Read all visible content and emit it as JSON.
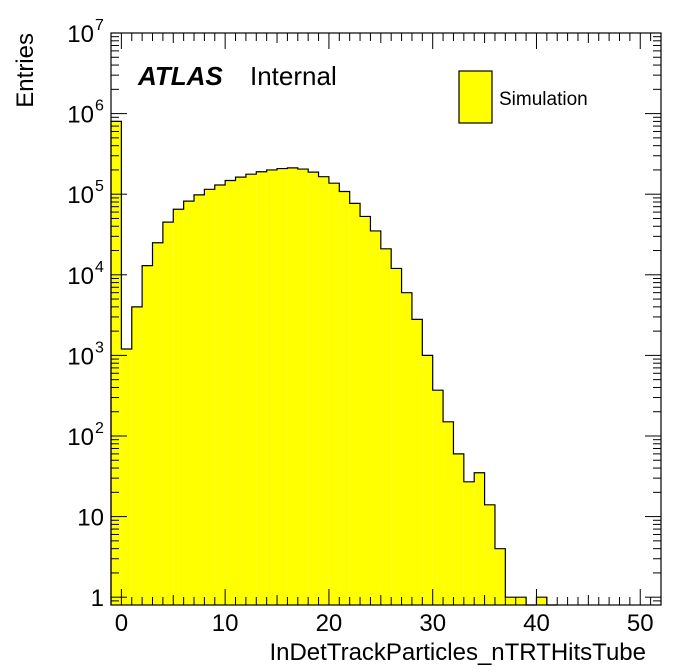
{
  "chart_data": {
    "type": "bar",
    "title": "",
    "xlabel": "InDetTrackParticles_nTRTHitsTube",
    "ylabel": "Entries",
    "xlim": [
      -1,
      52
    ],
    "ylim": [
      0.8,
      10000000
    ],
    "y_scale": "log",
    "x_tick_labels": [
      "0",
      "10",
      "20",
      "30",
      "40",
      "50"
    ],
    "y_tick_labels": [
      {
        "base": "1",
        "exp": ""
      },
      {
        "base": "10",
        "exp": ""
      },
      {
        "base": "10",
        "exp": "2"
      },
      {
        "base": "10",
        "exp": "3"
      },
      {
        "base": "10",
        "exp": "4"
      },
      {
        "base": "10",
        "exp": "5"
      },
      {
        "base": "10",
        "exp": "6"
      },
      {
        "base": "10",
        "exp": "7"
      }
    ],
    "grid": false,
    "legend_position": "top-right",
    "fill_color": "#ffff00",
    "line_color": "#000000",
    "series": [
      {
        "name": "Simulation",
        "bin_width": 1,
        "bin_low_edges": [
          -1,
          0,
          1,
          2,
          3,
          4,
          5,
          6,
          7,
          8,
          9,
          10,
          11,
          12,
          13,
          14,
          15,
          16,
          17,
          18,
          19,
          20,
          21,
          22,
          23,
          24,
          25,
          26,
          27,
          28,
          29,
          30,
          31,
          32,
          33,
          34,
          35,
          36,
          37,
          38,
          39,
          40,
          41
        ],
        "values": [
          800000,
          1200,
          4000,
          13000,
          25000,
          45000,
          65000,
          82000,
          98000,
          115000,
          130000,
          148000,
          163000,
          177000,
          190000,
          200000,
          208000,
          212000,
          205000,
          188000,
          165000,
          137000,
          108000,
          77000,
          53000,
          35000,
          21000,
          12000,
          6000,
          2800,
          1000,
          370,
          150,
          60,
          27,
          35,
          14,
          4,
          1,
          1,
          0,
          1,
          0
        ]
      }
    ],
    "annotations": {
      "experiment": "ATLAS",
      "status": "Internal"
    }
  }
}
